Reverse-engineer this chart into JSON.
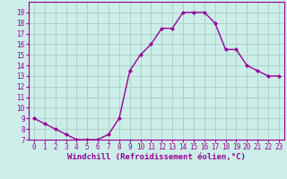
{
  "x": [
    0,
    1,
    2,
    3,
    4,
    5,
    6,
    7,
    8,
    9,
    10,
    11,
    12,
    13,
    14,
    15,
    16,
    17,
    18,
    19,
    20,
    21,
    22,
    23
  ],
  "y": [
    9,
    8.5,
    8,
    7.5,
    7,
    7,
    7,
    7.5,
    9,
    13.5,
    15,
    16,
    17.5,
    17.5,
    19,
    19,
    19,
    18,
    15.5,
    15.5,
    14,
    13.5,
    13,
    13
  ],
  "line_color": "#990099",
  "marker": "D",
  "marker_size": 2.0,
  "line_width": 1.0,
  "xlabel": "Windchill (Refroidissement éolien,°C)",
  "ylim": [
    7,
    20
  ],
  "xlim": [
    -0.5,
    23.5
  ],
  "yticks": [
    7,
    8,
    9,
    10,
    11,
    12,
    13,
    14,
    15,
    16,
    17,
    18,
    19
  ],
  "xticks": [
    0,
    1,
    2,
    3,
    4,
    5,
    6,
    7,
    8,
    9,
    10,
    11,
    12,
    13,
    14,
    15,
    16,
    17,
    18,
    19,
    20,
    21,
    22,
    23
  ],
  "background_color": "#cceee8",
  "grid_color": "#aacccc",
  "tick_label_fontsize": 5.5,
  "xlabel_fontsize": 6.5,
  "label_color": "#990099"
}
